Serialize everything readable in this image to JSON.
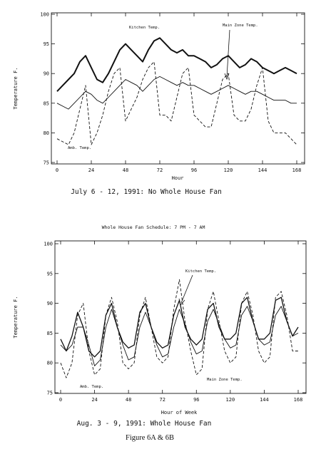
{
  "figure_caption": "Figure 6A & 6B",
  "chart_data": [
    {
      "id": "6A",
      "type": "line",
      "caption": "July 6 - 12, 1991: No Whole House Fan",
      "header": "",
      "xlabel": "Hour",
      "ylabel": "Temperature F.",
      "xlim": [
        0,
        168
      ],
      "ylim": [
        75,
        100
      ],
      "xticks": [
        0,
        24,
        48,
        72,
        96,
        120,
        144,
        168
      ],
      "yticks": [
        75,
        80,
        85,
        90,
        95,
        100
      ],
      "grid": false,
      "annotations": [
        "Kitchen Temp.",
        "Main Zone Temp.",
        "Amb. Temp."
      ],
      "series": [
        {
          "name": "Kitchen Temp.",
          "style": "solid-thick",
          "x": [
            0,
            4,
            8,
            12,
            16,
            20,
            24,
            28,
            32,
            36,
            40,
            44,
            48,
            52,
            56,
            60,
            64,
            68,
            72,
            76,
            80,
            84,
            88,
            92,
            96,
            100,
            104,
            108,
            112,
            116,
            120,
            124,
            128,
            132,
            136,
            140,
            144,
            148,
            152,
            156,
            160,
            164,
            168
          ],
          "y": [
            87,
            88,
            89,
            90,
            92,
            93,
            91,
            89,
            88.5,
            90,
            92,
            94,
            95,
            94,
            93,
            92,
            94,
            95.5,
            96,
            95,
            94,
            93.5,
            94,
            93,
            93,
            92.5,
            92,
            91,
            91.5,
            92.5,
            93,
            92,
            91,
            91.5,
            92.5,
            92,
            91,
            90.5,
            90,
            90.5,
            91,
            90.5,
            90
          ]
        },
        {
          "name": "Main Zone Temp.",
          "style": "solid-thin",
          "x": [
            0,
            4,
            8,
            12,
            16,
            20,
            24,
            28,
            32,
            36,
            40,
            44,
            48,
            52,
            56,
            60,
            64,
            68,
            72,
            76,
            80,
            84,
            88,
            92,
            96,
            100,
            104,
            108,
            112,
            116,
            120,
            124,
            128,
            132,
            136,
            140,
            144,
            148,
            152,
            156,
            160,
            164,
            168
          ],
          "y": [
            85,
            84.5,
            84,
            85,
            86,
            87,
            86.5,
            85.5,
            85,
            86,
            87,
            88,
            89,
            88.5,
            88,
            87,
            88,
            89,
            89.5,
            89,
            88.5,
            88,
            88.5,
            88,
            88,
            87.5,
            87,
            86.5,
            87,
            87.5,
            88,
            87.5,
            87,
            86.5,
            87,
            87,
            86.5,
            86,
            85.5,
            85.5,
            85.5,
            85,
            85
          ]
        },
        {
          "name": "Amb. Temp.",
          "style": "dashed",
          "x": [
            0,
            4,
            8,
            12,
            16,
            20,
            24,
            28,
            32,
            36,
            40,
            44,
            48,
            52,
            56,
            60,
            64,
            68,
            72,
            76,
            80,
            84,
            88,
            92,
            96,
            100,
            104,
            108,
            112,
            116,
            120,
            124,
            128,
            132,
            136,
            140,
            144,
            148,
            152,
            156,
            160,
            164,
            168
          ],
          "y": [
            79,
            78.5,
            78,
            80,
            84,
            88,
            78,
            80,
            83,
            87,
            90,
            91,
            82,
            84,
            86,
            89,
            91,
            92,
            83,
            83,
            82,
            86,
            90,
            91,
            83,
            82,
            81,
            81,
            85,
            89,
            90,
            83,
            82,
            82,
            84,
            88,
            91,
            82,
            80,
            80,
            80,
            79,
            78
          ]
        }
      ]
    },
    {
      "id": "6B",
      "type": "line",
      "caption": "Aug. 3 - 9, 1991: Whole House Fan",
      "header": "Whole House Fan Schedule: 7 PM - 7 AM",
      "xlabel": "Hour of Week",
      "ylabel": "Temperature F.",
      "xlim": [
        0,
        168
      ],
      "ylim": [
        75,
        100
      ],
      "xticks": [
        0,
        24,
        48,
        72,
        96,
        120,
        144,
        168
      ],
      "yticks": [
        75,
        80,
        85,
        90,
        95,
        100
      ],
      "grid": false,
      "annotations": [
        "Kitchen Temp.",
        "Main Zone Temp.",
        "Amb. Temp."
      ],
      "series": [
        {
          "name": "Kitchen Temp.",
          "style": "solid",
          "x": [
            0,
            4,
            8,
            12,
            16,
            20,
            24,
            28,
            32,
            36,
            40,
            44,
            48,
            52,
            56,
            60,
            64,
            68,
            72,
            76,
            80,
            84,
            88,
            92,
            96,
            100,
            104,
            108,
            112,
            116,
            120,
            124,
            128,
            132,
            136,
            140,
            144,
            148,
            152,
            156,
            160,
            164,
            168
          ],
          "y": [
            84,
            82,
            84.5,
            88.5,
            86,
            82,
            81,
            82,
            88,
            90,
            86,
            83.5,
            82.5,
            83,
            88.5,
            90,
            86,
            83.5,
            82.5,
            83,
            88,
            90.5,
            86,
            84,
            83,
            84,
            89,
            90,
            86,
            84,
            84,
            85,
            90,
            91,
            87,
            84,
            84,
            85,
            90.5,
            91,
            87,
            84.5,
            86
          ]
        },
        {
          "name": "Main Zone Temp.",
          "style": "solid-thin",
          "x": [
            0,
            4,
            8,
            12,
            16,
            20,
            24,
            28,
            32,
            36,
            40,
            44,
            48,
            52,
            56,
            60,
            64,
            68,
            72,
            76,
            80,
            84,
            88,
            92,
            96,
            100,
            104,
            108,
            112,
            116,
            120,
            124,
            128,
            132,
            136,
            140,
            144,
            148,
            152,
            156,
            160,
            164,
            168
          ],
          "y": [
            83,
            82,
            83,
            86,
            86,
            83,
            79.5,
            80.5,
            86,
            89,
            86,
            83,
            80.5,
            81,
            86,
            88.5,
            86,
            83,
            81,
            81.5,
            86,
            89,
            86.5,
            83.5,
            81.5,
            82,
            87,
            89,
            86.5,
            84,
            82.5,
            83,
            88,
            89.5,
            87,
            84,
            83,
            83.5,
            88,
            89.5,
            87,
            84.5,
            85
          ]
        },
        {
          "name": "Amb. Temp.",
          "style": "dashed",
          "x": [
            0,
            4,
            8,
            12,
            16,
            20,
            24,
            28,
            32,
            36,
            40,
            44,
            48,
            52,
            56,
            60,
            64,
            68,
            72,
            76,
            80,
            84,
            88,
            92,
            96,
            100,
            104,
            108,
            112,
            116,
            120,
            124,
            128,
            132,
            136,
            140,
            144,
            148,
            152,
            156,
            160,
            164,
            168
          ],
          "y": [
            80,
            77.5,
            80,
            88,
            90,
            82,
            78,
            79,
            88,
            91,
            87,
            80,
            79,
            80,
            88,
            91,
            86,
            81,
            80,
            81,
            89,
            94,
            87,
            82,
            78,
            79,
            89,
            92,
            87,
            82,
            80,
            81,
            90,
            92,
            88,
            82,
            80,
            81,
            91,
            92,
            88,
            82,
            82
          ]
        }
      ]
    }
  ]
}
